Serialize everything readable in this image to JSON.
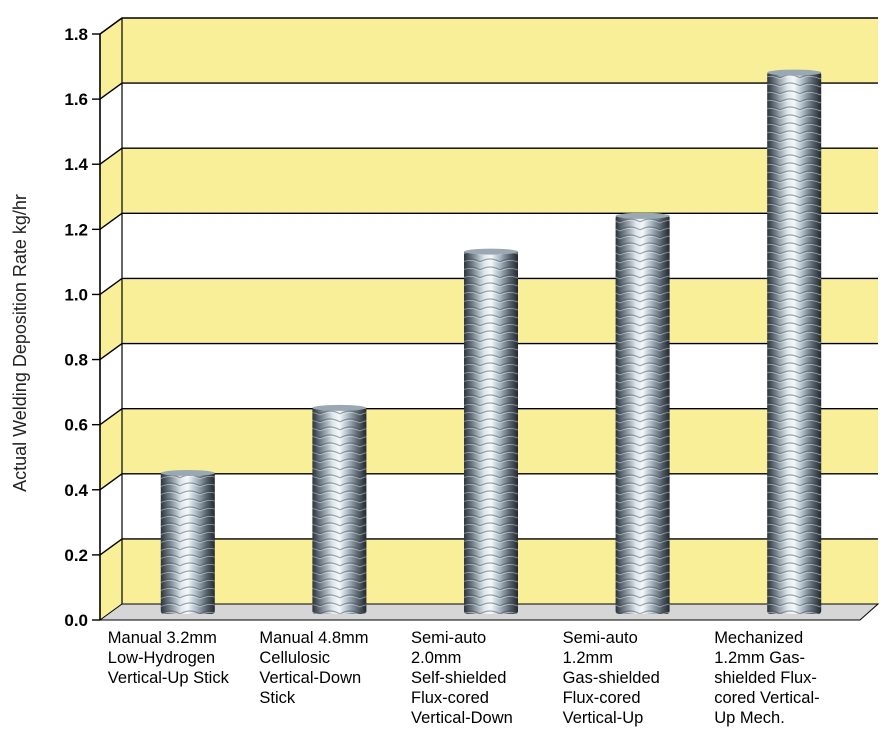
{
  "colors": {
    "band_yellow": "#f8ef98",
    "band_white": "#ffffff",
    "floor": "#d6d6d6",
    "grid_line": "#000000",
    "bar_steel": "#aebdc8"
  },
  "chart_data": {
    "type": "bar",
    "title": "",
    "ylabel": "Actual Welding Deposition Rate kg/hr",
    "xlabel": "",
    "ylim": [
      0,
      1.8
    ],
    "yticks": [
      "0.0",
      "0.2",
      "0.4",
      "0.6",
      "0.8",
      "1.0",
      "1.2",
      "1.4",
      "1.6",
      "1.8"
    ],
    "grid": true,
    "categories": [
      "Manual 3.2mm\nLow-Hydrogen\nVertical-Up Stick",
      "Manual 4.8mm\nCellulosic\nVertical-Down\nStick",
      "Semi-auto\n2.0mm\nSelf-shielded\nFlux-cored\nVertical-Down",
      "Semi-auto\n1.2mm\nGas-shielded\nFlux-cored\nVertical-Up",
      "Mechanized\n1.2mm Gas-\nshielded Flux-\ncored Vertical-\nUp Mech."
    ],
    "values": [
      0.43,
      0.63,
      1.11,
      1.22,
      1.66
    ]
  }
}
